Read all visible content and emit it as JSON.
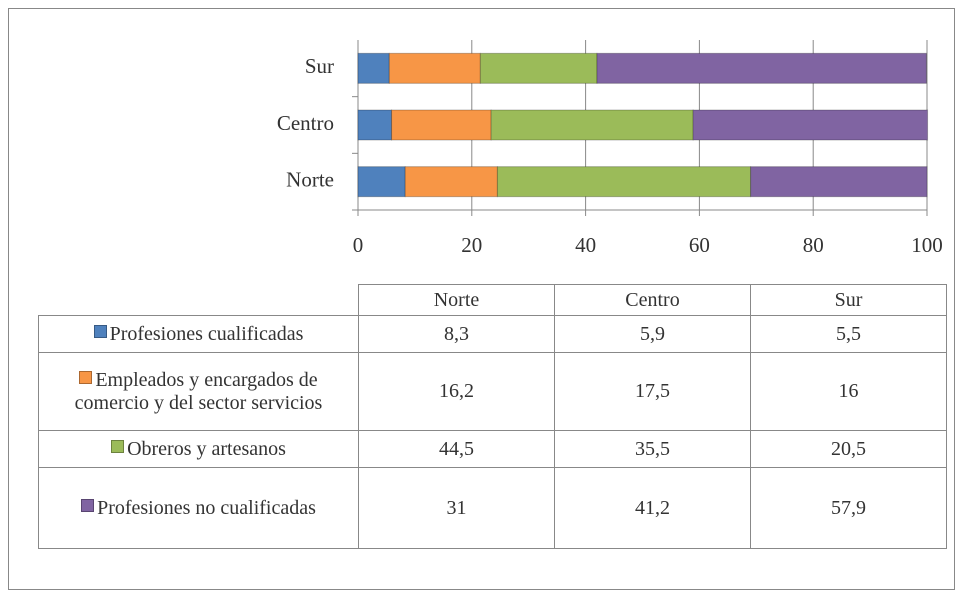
{
  "chart_data": {
    "type": "bar",
    "orientation": "horizontal",
    "stacked": true,
    "categories": [
      "Norte",
      "Centro",
      "Sur"
    ],
    "series": [
      {
        "name": "Profesiones cualificadas",
        "color": "#4f81bd",
        "values": [
          8.3,
          5.9,
          5.5
        ],
        "value_labels": [
          "8,3",
          "5,9",
          "5,5"
        ]
      },
      {
        "name": "Empleados y encargados de comercio y del sector servicios",
        "color": "#f79646",
        "values": [
          16.2,
          17.5,
          16
        ],
        "value_labels": [
          "16,2",
          "17,5",
          "16"
        ]
      },
      {
        "name": "Obreros y artesanos",
        "color": "#9bbb59",
        "values": [
          44.5,
          35.5,
          20.5
        ],
        "value_labels": [
          "44,5",
          "35,5",
          "20,5"
        ]
      },
      {
        "name": "Profesiones no cualificadas",
        "color": "#8064a2",
        "values": [
          31,
          41.2,
          57.9
        ],
        "value_labels": [
          "31",
          "41,2",
          "57,9"
        ]
      }
    ],
    "xlim": [
      0,
      100
    ],
    "xticks": [
      0,
      20,
      40,
      60,
      80,
      100
    ],
    "grid": true,
    "data_table": true
  }
}
